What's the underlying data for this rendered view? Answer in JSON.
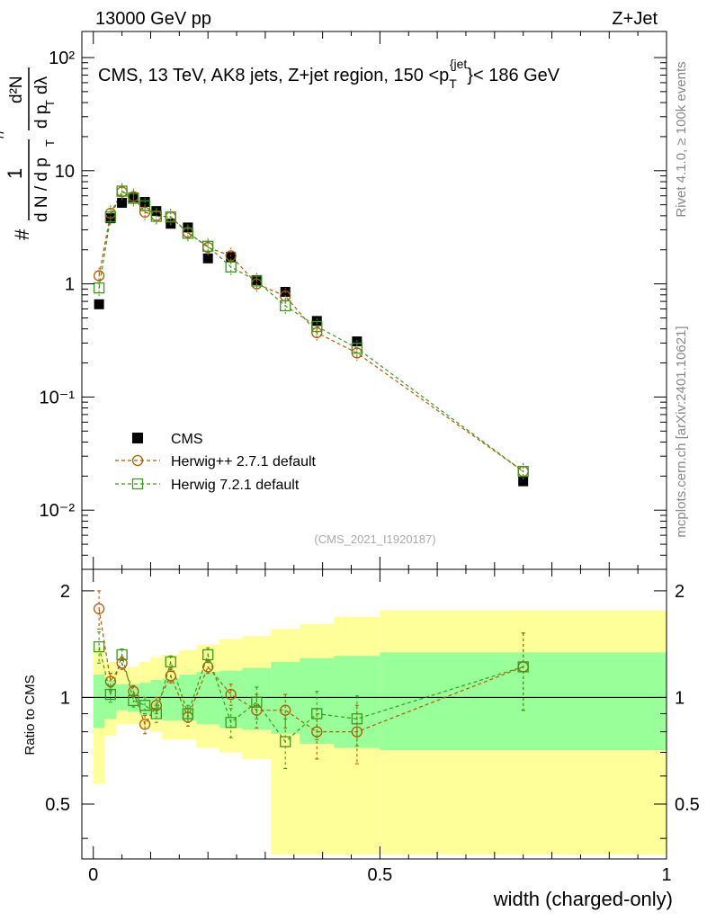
{
  "header": {
    "energy_label": "13000 GeV pp",
    "process_label": "Z+Jet"
  },
  "side": {
    "rivet_label": "Rivet 4.1.0, ≥ 100k events",
    "mcplots_label": "mcplots.cern.ch [arXiv:2401.10621]"
  },
  "analysis_id": "(CMS_2021_I1920187)",
  "colors": {
    "cms": "#000000",
    "herwigpp": "#b35900",
    "herwig7": "#3a9a1a",
    "band_stat": "#99ff99",
    "band_total": "#ffff99"
  },
  "chart_data": [
    {
      "type": "scatter",
      "title": "CMS, 13 TeV, AK8 jets, Z+jet region, 150 <p_T^{jet}< 186 GeV",
      "title_text": {
        "before": "CMS, 13 TeV, AK8 jets, Z+jet region, 150 <p",
        "sub": "T",
        "sup": "{jet",
        "after": "}< 186 GeV"
      },
      "ylabel": "1/(dN/dp_T) d²N/(dp_T dλ)",
      "ylabel_parts": {
        "hash1": "#",
        "one": "1",
        "dN": "d N / d p",
        "sub_T": "T",
        "hash2": "#",
        "d2N": "d²N",
        "dpT": "d p",
        "dlambda": "dλ"
      },
      "yscale": "log",
      "ylim": [
        0.003,
        170
      ],
      "xlim": [
        -0.02,
        1.0
      ],
      "y_ticks": [
        "10⁻²",
        "10⁻¹",
        "1",
        "10",
        "10²"
      ],
      "y_tick_values": [
        0.01,
        0.1,
        1,
        10,
        100
      ],
      "x": [
        0.01,
        0.03,
        0.05,
        0.07,
        0.09,
        0.11,
        0.135,
        0.165,
        0.2,
        0.24,
        0.285,
        0.335,
        0.39,
        0.46,
        0.75
      ],
      "series": [
        {
          "name": "CMS",
          "marker": "filled-square",
          "values": [
            0.66,
            3.8,
            5.2,
            5.8,
            5.3,
            4.4,
            3.4,
            3.15,
            1.68,
            1.73,
            1.08,
            0.85,
            0.47,
            0.31,
            0.018
          ]
        },
        {
          "name": "Herwig++ 2.7.1 default",
          "marker": "open-circle",
          "line": "dashed",
          "values": [
            1.18,
            4.2,
            6.5,
            5.9,
            4.3,
            4.0,
            3.9,
            2.85,
            2.1,
            1.77,
            1.0,
            0.78,
            0.37,
            0.245,
            0.022
          ]
        },
        {
          "name": "Herwig 7.2.1 default",
          "marker": "open-square",
          "line": "dashed",
          "values": [
            0.92,
            3.9,
            6.6,
            5.7,
            4.9,
            3.95,
            3.9,
            2.8,
            2.15,
            1.41,
            1.06,
            0.64,
            0.42,
            0.27,
            0.022
          ]
        }
      ],
      "legend": [
        "CMS",
        "Herwig++ 2.7.1 default",
        "Herwig 7.2.1 default"
      ],
      "legend_position": "bottom-left"
    },
    {
      "type": "scatter",
      "ylabel": "Ratio to CMS",
      "xlabel": "width (charged-only)",
      "ylim": [
        0.35,
        2.3
      ],
      "xlim": [
        -0.02,
        1.0
      ],
      "y_ticks": [
        "0.5",
        "1",
        "2"
      ],
      "y_tick_values": [
        0.5,
        1,
        2
      ],
      "x_ticks": [
        "0",
        "0.5",
        "1"
      ],
      "x_tick_values": [
        0,
        0.5,
        1
      ],
      "reference_line": 1,
      "band_bin_edges": [
        0.0,
        0.02,
        0.04,
        0.06,
        0.08,
        0.1,
        0.12,
        0.15,
        0.18,
        0.22,
        0.26,
        0.31,
        0.36,
        0.42,
        0.5,
        1.0
      ],
      "stat_band": {
        "lower": [
          0.82,
          0.87,
          0.92,
          0.91,
          0.89,
          0.88,
          0.86,
          0.86,
          0.84,
          0.82,
          0.81,
          0.79,
          0.74,
          0.72,
          0.71
        ],
        "upper": [
          1.16,
          1.12,
          1.09,
          1.09,
          1.1,
          1.12,
          1.13,
          1.16,
          1.18,
          1.19,
          1.21,
          1.26,
          1.29,
          1.31,
          1.34
        ]
      },
      "total_band": {
        "lower": [
          0.57,
          0.78,
          0.84,
          0.84,
          0.82,
          0.8,
          0.76,
          0.76,
          0.72,
          0.7,
          0.67,
          0.36,
          0.36,
          0.36,
          0.36
        ],
        "upper": [
          1.38,
          1.26,
          1.2,
          1.22,
          1.26,
          1.3,
          1.32,
          1.36,
          1.41,
          1.46,
          1.49,
          1.56,
          1.61,
          1.69,
          1.76
        ]
      },
      "series": [
        {
          "name": "Herwig++ 2.7.1 default",
          "values": [
            1.78,
            1.11,
            1.25,
            1.04,
            0.84,
            0.95,
            1.15,
            0.88,
            1.22,
            1.02,
            0.92,
            0.92,
            0.8,
            0.8,
            1.22
          ],
          "err_low": [
            0.22,
            0.06,
            0.05,
            0.04,
            0.05,
            0.05,
            0.05,
            0.05,
            0.05,
            0.07,
            0.1,
            0.1,
            0.13,
            0.15,
            0.3
          ],
          "err_high": [
            0.22,
            0.06,
            0.05,
            0.04,
            0.05,
            0.05,
            0.05,
            0.05,
            0.05,
            0.07,
            0.1,
            0.1,
            0.13,
            0.15,
            0.3
          ]
        },
        {
          "name": "Herwig 7.2.1 default",
          "values": [
            1.39,
            1.02,
            1.32,
            0.98,
            0.95,
            0.9,
            1.26,
            0.9,
            1.32,
            0.85,
            0.97,
            0.75,
            0.9,
            0.87,
            1.22
          ],
          "err_low": [
            0.14,
            0.05,
            0.05,
            0.04,
            0.05,
            0.05,
            0.05,
            0.05,
            0.06,
            0.08,
            0.1,
            0.12,
            0.14,
            0.14,
            0.3
          ],
          "err_high": [
            0.14,
            0.05,
            0.05,
            0.04,
            0.05,
            0.05,
            0.05,
            0.05,
            0.06,
            0.08,
            0.1,
            0.12,
            0.14,
            0.14,
            0.3
          ]
        }
      ]
    }
  ]
}
